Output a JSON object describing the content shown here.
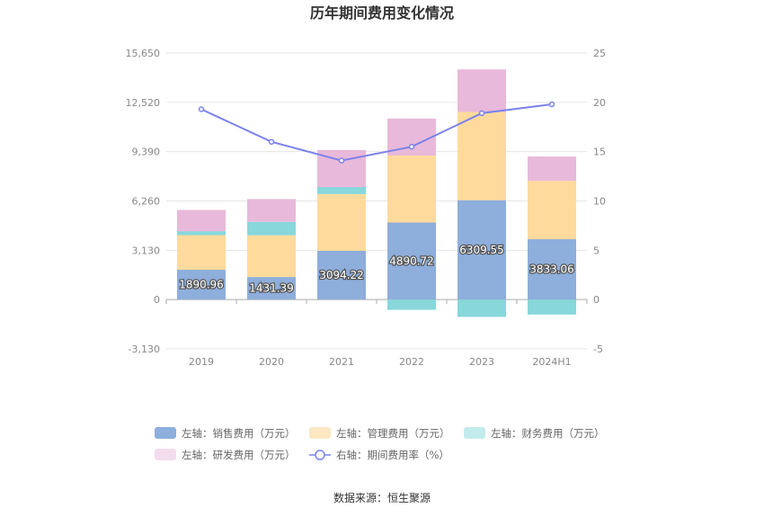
{
  "chart_data": {
    "type": "bar",
    "title": "历年期间费用变化情况",
    "categories": [
      "2019",
      "2020",
      "2021",
      "2022",
      "2023",
      "2024H1"
    ],
    "left_axis": {
      "ticks": [
        "-3,130",
        "0",
        "3,130",
        "6,260",
        "9,390",
        "12,520",
        "15,650"
      ],
      "ylim": [
        -3130,
        15650
      ]
    },
    "right_axis": {
      "ticks": [
        "-5",
        "0",
        "5",
        "10",
        "15",
        "20",
        "25"
      ],
      "ylim": [
        -5,
        25
      ]
    },
    "series": [
      {
        "name": "左轴：销售费用（万元）",
        "type": "bar",
        "color": "#8eaedb",
        "values": [
          1890.96,
          1431.39,
          3094.22,
          4890.72,
          6309.55,
          3833.06
        ],
        "labels": [
          "1890.96",
          "1431.39",
          "3094.22",
          "4890.72",
          "6309.55",
          "3833.06"
        ]
      },
      {
        "name": "左轴：管理费用（万元）",
        "type": "bar",
        "color": "#fedb9c",
        "values": [
          2200,
          2650,
          3600,
          4250,
          5600,
          3700
        ]
      },
      {
        "name": "左轴：财务费用（万元）",
        "type": "bar",
        "color": "#87d7db",
        "values": [
          250,
          850,
          450,
          -650,
          -1100,
          -950
        ]
      },
      {
        "name": "左轴：研发费用（万元）",
        "type": "bar",
        "color": "#e8b9da",
        "values": [
          1350,
          1450,
          2350,
          2350,
          2700,
          1550
        ]
      },
      {
        "name": "右轴：期间费用率（%）",
        "type": "line",
        "color": "#7b82ea",
        "values": [
          19.3,
          16.0,
          14.1,
          15.5,
          18.9,
          19.8
        ]
      }
    ],
    "source": "数据来源：恒生聚源"
  }
}
